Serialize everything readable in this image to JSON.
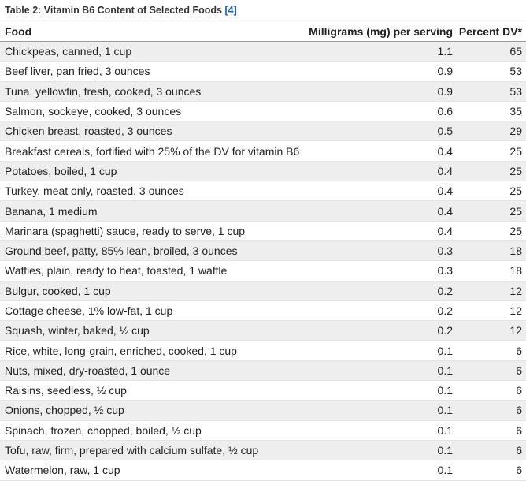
{
  "caption": {
    "title": "Table 2: Vitamin B6 Content of Selected Foods",
    "ref": "[4]"
  },
  "table": {
    "headers": [
      "Food",
      "Milligrams (mg) per serving",
      "Percent DV*"
    ],
    "rows": [
      [
        "Chickpeas, canned, 1 cup",
        "1.1",
        "65"
      ],
      [
        "Beef liver, pan fried, 3 ounces",
        "0.9",
        "53"
      ],
      [
        "Tuna, yellowfin, fresh, cooked, 3 ounces",
        "0.9",
        "53"
      ],
      [
        "Salmon, sockeye, cooked, 3 ounces",
        "0.6",
        "35"
      ],
      [
        "Chicken breast, roasted, 3 ounces",
        "0.5",
        "29"
      ],
      [
        "Breakfast cereals, fortified with 25% of the DV for vitamin B6",
        "0.4",
        "25"
      ],
      [
        "Potatoes, boiled, 1 cup",
        "0.4",
        "25"
      ],
      [
        "Turkey, meat only, roasted, 3 ounces",
        "0.4",
        "25"
      ],
      [
        "Banana, 1 medium",
        "0.4",
        "25"
      ],
      [
        "Marinara (spaghetti) sauce, ready to serve, 1 cup",
        "0.4",
        "25"
      ],
      [
        "Ground beef, patty, 85% lean, broiled, 3 ounces",
        "0.3",
        "18"
      ],
      [
        "Waffles, plain, ready to heat, toasted, 1 waffle",
        "0.3",
        "18"
      ],
      [
        "Bulgur, cooked, 1 cup",
        "0.2",
        "12"
      ],
      [
        "Cottage cheese, 1% low-fat, 1 cup",
        "0.2",
        "12"
      ],
      [
        "Squash, winter, baked, ½ cup",
        "0.2",
        "12"
      ],
      [
        "Rice, white, long-grain, enriched, cooked, 1 cup",
        "0.1",
        "6"
      ],
      [
        "Nuts, mixed, dry-roasted, 1 ounce",
        "0.1",
        "6"
      ],
      [
        "Raisins, seedless, ½ cup",
        "0.1",
        "6"
      ],
      [
        "Onions, chopped, ½ cup",
        "0.1",
        "6"
      ],
      [
        "Spinach, frozen, chopped, boiled, ½ cup",
        "0.1",
        "6"
      ],
      [
        "Tofu, raw, firm, prepared with calcium sulfate, ½ cup",
        "0.1",
        "6"
      ],
      [
        "Watermelon, raw, 1 cup",
        "0.1",
        "6"
      ]
    ]
  },
  "colors": {
    "stripe": "#eeeeee",
    "link": "#1f5fa8"
  }
}
